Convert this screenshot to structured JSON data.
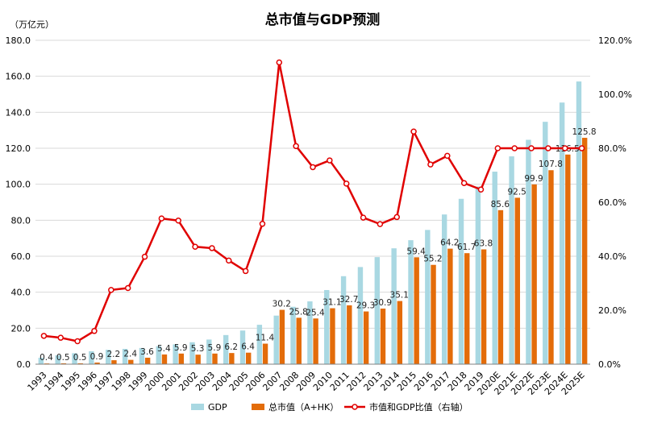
{
  "chart_data": {
    "type": "bar+line",
    "title": "总市值与GDP预测",
    "left_axis_unit": "（万亿元）",
    "categories": [
      "1993",
      "1994",
      "1995",
      "1996",
      "1997",
      "1998",
      "1999",
      "2000",
      "2001",
      "2002",
      "2003",
      "2004",
      "2005",
      "2006",
      "2007",
      "2008",
      "2009",
      "2010",
      "2011",
      "2012",
      "2013",
      "2014",
      "2015",
      "2016",
      "2017",
      "2018",
      "2019",
      "2020E",
      "2021E",
      "2022E",
      "2023E",
      "2024E",
      "2025E"
    ],
    "y_left": {
      "min": 0,
      "max": 180,
      "step": 20,
      "tick_labels": [
        "0.0",
        "20.0",
        "40.0",
        "60.0",
        "80.0",
        "100.0",
        "120.0",
        "140.0",
        "160.0",
        "180.0"
      ]
    },
    "y_right": {
      "min": 0,
      "max": 120,
      "step": 20,
      "tick_labels": [
        "0.0%",
        "20.0%",
        "40.0%",
        "60.0%",
        "80.0%",
        "100.0%",
        "120.0%"
      ]
    },
    "grid": true,
    "legend_position": "bottom",
    "series": [
      {
        "name": "GDP",
        "kind": "bar",
        "axis": "left",
        "color": "#a9d8e2",
        "values": [
          3.6,
          4.9,
          6.1,
          7.2,
          8.0,
          8.5,
          9.0,
          10.0,
          11.0,
          12.2,
          13.7,
          16.2,
          18.7,
          21.9,
          27.0,
          31.9,
          34.9,
          41.2,
          48.9,
          54.0,
          59.5,
          64.4,
          68.9,
          74.6,
          83.2,
          91.9,
          98.7,
          107.0,
          115.5,
          124.7,
          134.7,
          145.4,
          157.1
        ]
      },
      {
        "name": "总市值（A+HK）",
        "kind": "bar",
        "axis": "left",
        "color": "#e36c0a",
        "values": [
          0.4,
          0.5,
          0.5,
          0.9,
          2.2,
          2.4,
          3.6,
          5.4,
          5.9,
          5.3,
          5.9,
          6.2,
          6.4,
          11.4,
          30.2,
          25.8,
          25.4,
          31.1,
          32.7,
          29.3,
          30.9,
          35.1,
          59.4,
          55.2,
          64.2,
          61.7,
          63.8,
          85.6,
          92.5,
          99.9,
          107.8,
          116.5,
          125.8
        ],
        "data_labels": [
          "0.4",
          "0.5",
          "0.5",
          "0.9",
          "2.2",
          "2.4",
          "3.6",
          "5.4",
          "5.9",
          "5.3",
          "5.9",
          "6.2",
          "6.4",
          "11.4",
          "30.2",
          "25.8",
          "25.4",
          "31.1",
          "32.7",
          "29.3",
          "30.9",
          "35.1",
          "59.4",
          "55.2",
          "64.2",
          "61.7",
          "63.8",
          "85.6",
          "92.5",
          "99.9",
          "107.8",
          "116.5",
          "125.8"
        ]
      },
      {
        "name": "市值和GDP比值（右轴）",
        "kind": "line",
        "axis": "right",
        "color": "#e00000",
        "values": [
          10.5,
          9.8,
          8.5,
          12.3,
          27.5,
          28.2,
          39.8,
          54.0,
          53.2,
          43.5,
          43.0,
          38.4,
          34.5,
          52.0,
          111.8,
          80.8,
          73.0,
          75.5,
          66.9,
          54.3,
          51.9,
          54.5,
          86.2,
          74.0,
          77.2,
          67.1,
          64.7,
          80.0,
          80.0,
          80.0,
          80.0,
          80.0,
          80.0
        ]
      }
    ]
  }
}
